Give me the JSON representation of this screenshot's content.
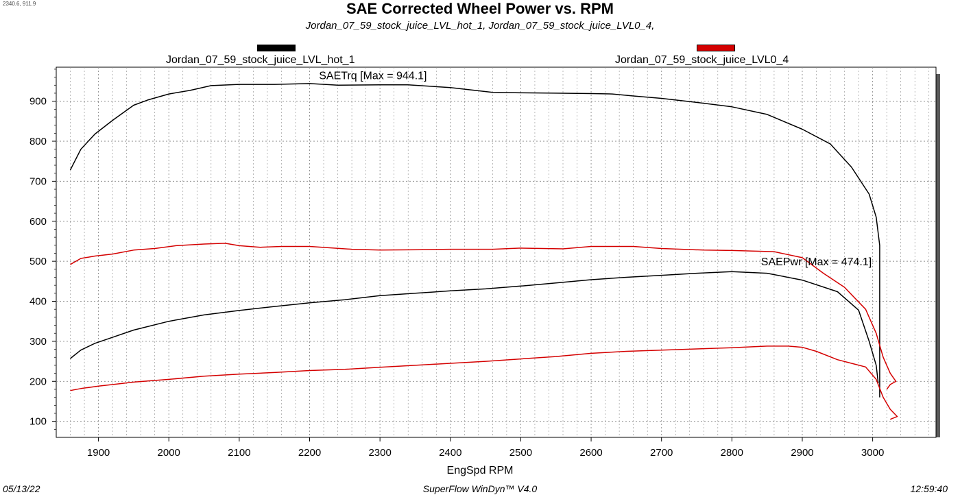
{
  "corner_readout": "2340.6, 911.9",
  "footer": {
    "date": "05/13/22",
    "software": "SuperFlow WinDyn™ V4.0",
    "time": "12:59:40"
  },
  "colors": {
    "run1": "#000000",
    "run2": "#d40000",
    "grid": "#8a8a8a",
    "shadow": "#5a5a5a"
  },
  "chart_data": {
    "type": "line",
    "title": "SAE Corrected Wheel Power vs. RPM",
    "subtitle": "Jordan_07_59_stock_juice_LVL_hot_1, Jordan_07_59_stock_juice_LVL0_4,",
    "xlabel": "EngSpd RPM",
    "ylabel": "",
    "xlim": [
      1840,
      3090
    ],
    "ylim": [
      60,
      985
    ],
    "xticks": [
      1900,
      2000,
      2100,
      2200,
      2300,
      2400,
      2500,
      2600,
      2700,
      2800,
      2900,
      3000
    ],
    "yticks": [
      100,
      200,
      300,
      400,
      500,
      600,
      700,
      800,
      900
    ],
    "grid": true,
    "legend": [
      {
        "name": "Jordan_07_59_stock_juice_LVL_hot_1",
        "color": "#000000",
        "position": "top-left"
      },
      {
        "name": "Jordan_07_59_stock_juice_LVL0_4",
        "color": "#d40000",
        "position": "top-right"
      }
    ],
    "annotations": [
      {
        "text": "SAETrq [Max = 944.1]",
        "x": 2290,
        "y": 955
      },
      {
        "text": "SAEPwr [Max = 474.1]",
        "x": 2920,
        "y": 490
      }
    ],
    "series": [
      {
        "run": "Jordan_07_59_stock_juice_LVL_hot_1",
        "quantity": "SAETrq",
        "color": "#000000",
        "x": [
          1860,
          1875,
          1895,
          1920,
          1950,
          1970,
          2000,
          2030,
          2060,
          2100,
          2150,
          2200,
          2240,
          2300,
          2340,
          2400,
          2460,
          2500,
          2550,
          2600,
          2630,
          2660,
          2700,
          2750,
          2800,
          2850,
          2900,
          2940,
          2970,
          2995,
          3005,
          3010,
          3010,
          3010
        ],
        "values": [
          728,
          780,
          818,
          852,
          890,
          903,
          918,
          927,
          939,
          942,
          942,
          944,
          940,
          941,
          941,
          934,
          922,
          921,
          920,
          919,
          918,
          913,
          907,
          897,
          886,
          867,
          830,
          793,
          735,
          668,
          610,
          540,
          350,
          160
        ]
      },
      {
        "run": "Jordan_07_59_stock_juice_LVL_hot_1",
        "quantity": "SAEPwr",
        "color": "#000000",
        "x": [
          1860,
          1875,
          1895,
          1920,
          1950,
          2000,
          2050,
          2100,
          2150,
          2200,
          2250,
          2300,
          2350,
          2400,
          2450,
          2500,
          2550,
          2600,
          2650,
          2700,
          2750,
          2800,
          2850,
          2900,
          2950,
          2980,
          2995,
          3005,
          3008
        ],
        "values": [
          257,
          278,
          295,
          310,
          328,
          350,
          366,
          377,
          387,
          396,
          404,
          414,
          420,
          426,
          431,
          438,
          446,
          454,
          460,
          465,
          470,
          474,
          470,
          453,
          424,
          378,
          300,
          240,
          195
        ]
      },
      {
        "run": "Jordan_07_59_stock_juice_LVL0_4",
        "quantity": "SAETrq",
        "color": "#d40000",
        "x": [
          1860,
          1875,
          1895,
          1920,
          1950,
          1980,
          2010,
          2050,
          2080,
          2100,
          2130,
          2160,
          2200,
          2260,
          2300,
          2360,
          2400,
          2460,
          2500,
          2560,
          2600,
          2660,
          2700,
          2760,
          2800,
          2860,
          2900,
          2930,
          2960,
          2990,
          3005,
          3015,
          3025,
          3033,
          3025,
          3020
        ],
        "values": [
          492,
          507,
          513,
          518,
          528,
          532,
          539,
          543,
          545,
          539,
          535,
          537,
          537,
          530,
          528,
          529,
          530,
          530,
          533,
          531,
          537,
          537,
          532,
          528,
          527,
          524,
          509,
          470,
          435,
          380,
          320,
          260,
          220,
          200,
          192,
          180
        ]
      },
      {
        "run": "Jordan_07_59_stock_juice_LVL0_4",
        "quantity": "SAEPwr",
        "color": "#d40000",
        "x": [
          1860,
          1875,
          1900,
          1925,
          1950,
          2000,
          2050,
          2100,
          2150,
          2200,
          2250,
          2300,
          2350,
          2400,
          2450,
          2500,
          2550,
          2600,
          2650,
          2700,
          2750,
          2800,
          2850,
          2880,
          2900,
          2920,
          2950,
          2970,
          2990,
          3005,
          3015,
          3025,
          3035,
          3025
        ],
        "values": [
          177,
          182,
          188,
          193,
          198,
          205,
          213,
          218,
          222,
          227,
          230,
          235,
          240,
          245,
          250,
          256,
          262,
          270,
          275,
          278,
          281,
          284,
          288,
          288,
          285,
          275,
          254,
          245,
          236,
          205,
          160,
          130,
          112,
          105
        ]
      }
    ]
  }
}
